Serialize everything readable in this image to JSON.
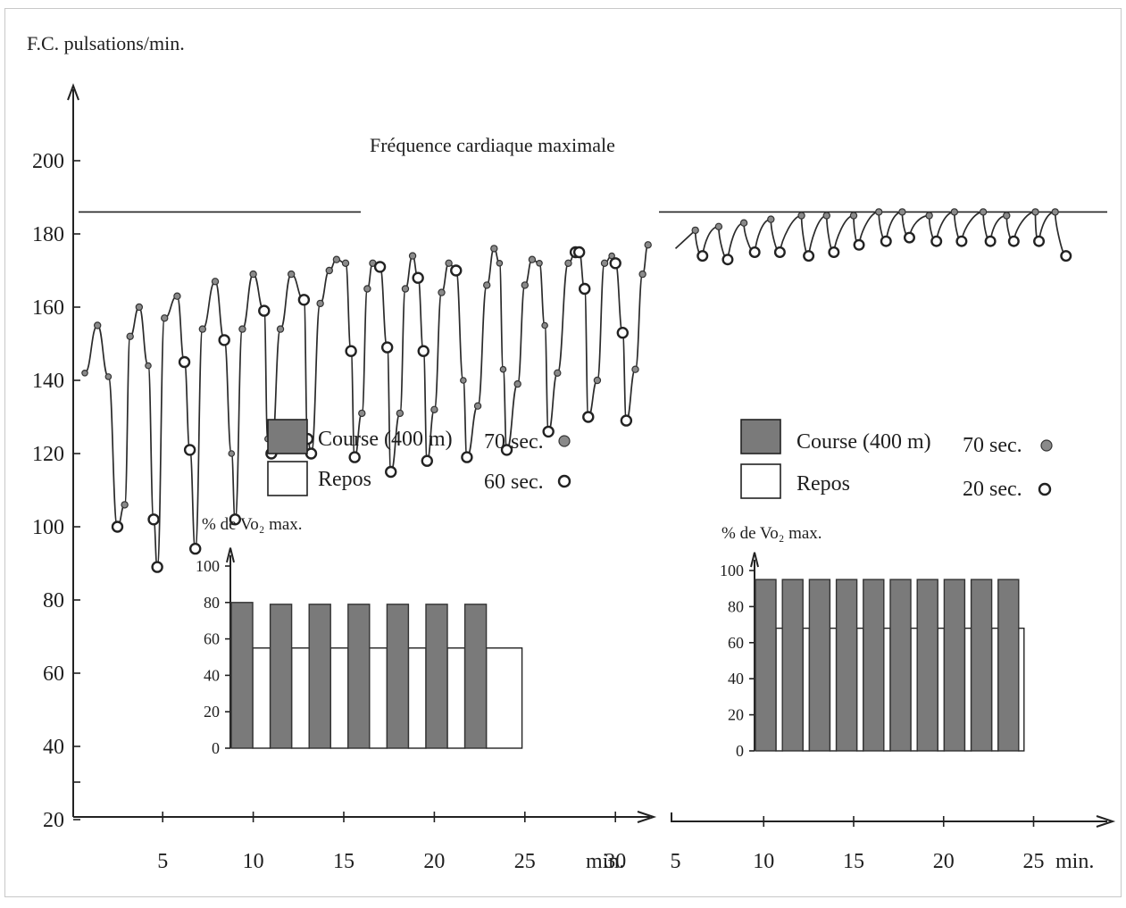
{
  "chart_data": [
    {
      "type": "line",
      "panel": "left",
      "ylabel": "F.C. pulsations/min.",
      "xlabel": "min.",
      "yticks": [
        20,
        40,
        60,
        80,
        100,
        120,
        140,
        160,
        180,
        200
      ],
      "xticks": [
        5,
        10,
        15,
        20,
        25,
        30
      ],
      "xlim": [
        0,
        32
      ],
      "ylim": [
        0,
        205
      ],
      "hline": {
        "y": 186,
        "label": "Fréquence cardiaque maximale"
      },
      "points": [
        [
          0.7,
          142
        ],
        [
          1.4,
          155
        ],
        [
          2.0,
          141
        ],
        [
          2.5,
          100
        ],
        [
          2.9,
          106
        ],
        [
          3.2,
          152
        ],
        [
          3.7,
          160
        ],
        [
          4.2,
          144
        ],
        [
          4.5,
          102
        ],
        [
          4.7,
          89
        ],
        [
          5.1,
          157
        ],
        [
          5.8,
          163
        ],
        [
          6.2,
          145
        ],
        [
          6.5,
          121
        ],
        [
          6.8,
          94
        ],
        [
          7.2,
          154
        ],
        [
          7.9,
          167
        ],
        [
          8.4,
          151
        ],
        [
          8.8,
          120
        ],
        [
          9.0,
          102
        ],
        [
          9.4,
          154
        ],
        [
          10.0,
          169
        ],
        [
          10.6,
          159
        ],
        [
          10.8,
          124
        ],
        [
          11.0,
          120
        ],
        [
          11.5,
          154
        ],
        [
          12.1,
          169
        ],
        [
          12.8,
          162
        ],
        [
          13.0,
          124
        ],
        [
          13.2,
          120
        ],
        [
          13.7,
          161
        ],
        [
          14.2,
          170
        ],
        [
          14.6,
          173
        ],
        [
          15.1,
          172
        ],
        [
          15.4,
          148
        ],
        [
          15.6,
          119
        ],
        [
          16.0,
          131
        ],
        [
          16.3,
          165
        ],
        [
          16.6,
          172
        ],
        [
          17.0,
          171
        ],
        [
          17.4,
          149
        ],
        [
          17.6,
          115
        ],
        [
          18.1,
          131
        ],
        [
          18.4,
          165
        ],
        [
          18.8,
          174
        ],
        [
          19.1,
          168
        ],
        [
          19.4,
          148
        ],
        [
          19.6,
          118
        ],
        [
          20.0,
          132
        ],
        [
          20.4,
          164
        ],
        [
          20.8,
          172
        ],
        [
          21.2,
          170
        ],
        [
          21.6,
          140
        ],
        [
          21.8,
          119
        ],
        [
          22.4,
          133
        ],
        [
          22.9,
          166
        ],
        [
          23.3,
          176
        ],
        [
          23.6,
          172
        ],
        [
          23.8,
          143
        ],
        [
          24.0,
          121
        ],
        [
          24.6,
          139
        ],
        [
          25.0,
          166
        ],
        [
          25.4,
          173
        ],
        [
          25.8,
          172
        ],
        [
          26.1,
          155
        ],
        [
          26.3,
          126
        ],
        [
          26.8,
          142
        ],
        [
          27.4,
          172
        ],
        [
          27.8,
          175
        ],
        [
          28.0,
          175
        ],
        [
          28.3,
          165
        ],
        [
          28.5,
          130
        ],
        [
          29.0,
          140
        ],
        [
          29.4,
          172
        ],
        [
          29.8,
          174
        ],
        [
          30.0,
          172
        ],
        [
          30.4,
          153
        ],
        [
          30.6,
          129
        ],
        [
          31.1,
          143
        ],
        [
          31.5,
          169
        ],
        [
          31.8,
          177
        ]
      ],
      "run_x": [
        1.4,
        2.9,
        3.2,
        3.7,
        5.1,
        5.8,
        7.2,
        7.9,
        9.4,
        10.0,
        11.5,
        12.1,
        13.7,
        14.2,
        14.6,
        15.1,
        16.0,
        16.3,
        16.6,
        18.1,
        18.4,
        18.8,
        20.0,
        20.4,
        20.8,
        22.4,
        22.9,
        23.3,
        24.6,
        25.0,
        25.4,
        26.8,
        27.4,
        29.0,
        29.4,
        31.1,
        31.5,
        31.8
      ],
      "rest_x": [
        2.5,
        4.5,
        4.7,
        6.2,
        6.5,
        6.8,
        8.4,
        9.0,
        10.6,
        11.0,
        12.8,
        13.0,
        13.2,
        15.4,
        15.6,
        17.0,
        17.4,
        17.6,
        19.1,
        19.4,
        19.6,
        21.2,
        21.8,
        24.0,
        26.3,
        27.8,
        28.0,
        28.3,
        28.5,
        30.0,
        30.4,
        30.6
      ]
    },
    {
      "type": "line",
      "panel": "right",
      "xlabel": "min.",
      "xticks": [
        5,
        10,
        15,
        20,
        25
      ],
      "xlim": [
        5,
        27
      ],
      "ylim": [
        0,
        205
      ],
      "hline": {
        "y": 186
      },
      "peaks": [
        [
          6.2,
          181
        ],
        [
          7.5,
          182
        ],
        [
          8.9,
          183
        ],
        [
          10.4,
          184
        ],
        [
          12.1,
          185
        ],
        [
          13.5,
          185
        ],
        [
          15.0,
          185
        ],
        [
          16.4,
          186
        ],
        [
          17.7,
          186
        ],
        [
          19.2,
          185
        ],
        [
          20.6,
          186
        ],
        [
          22.2,
          186
        ],
        [
          23.5,
          185
        ],
        [
          25.1,
          186
        ],
        [
          26.2,
          186
        ]
      ],
      "troughs": [
        [
          6.6,
          174
        ],
        [
          8.0,
          173
        ],
        [
          9.5,
          175
        ],
        [
          10.9,
          175
        ],
        [
          12.5,
          174
        ],
        [
          13.9,
          175
        ],
        [
          15.3,
          177
        ],
        [
          16.8,
          178
        ],
        [
          18.1,
          179
        ],
        [
          19.6,
          178
        ],
        [
          21.0,
          178
        ],
        [
          22.6,
          178
        ],
        [
          23.9,
          178
        ],
        [
          25.3,
          178
        ],
        [
          26.8,
          174
        ]
      ]
    },
    {
      "type": "bar",
      "panel": "left-inset",
      "ylabel": "% de Vo₂ max.",
      "yticks": [
        0,
        20,
        40,
        60,
        80,
        100
      ],
      "ylim": [
        0,
        100
      ],
      "run_values": [
        80,
        79,
        79,
        79,
        79,
        79,
        79
      ],
      "rest_values": [
        55,
        55,
        55,
        55,
        55,
        55,
        55
      ]
    },
    {
      "type": "bar",
      "panel": "right-inset",
      "ylabel": "% de Vo₂ max.",
      "yticks": [
        0,
        20,
        40,
        60,
        80,
        100
      ],
      "ylim": [
        0,
        100
      ],
      "run_values": [
        95,
        95,
        95,
        95,
        95,
        95,
        95,
        95,
        95,
        95
      ],
      "rest_values": [
        68,
        68,
        68,
        68,
        68,
        68,
        68,
        68,
        68,
        68
      ]
    }
  ],
  "legends": [
    {
      "run_label": "Course (400 m)",
      "run_time": "70 sec.",
      "rest_label": "Repos",
      "rest_time": "60 sec."
    },
    {
      "run_label": "Course (400 m)",
      "run_time": "70 sec.",
      "rest_label": "Repos",
      "rest_time": "20 sec."
    }
  ],
  "colors": {
    "run": "#7a7a7a",
    "rest": "#ffffff",
    "ink": "#222222"
  }
}
